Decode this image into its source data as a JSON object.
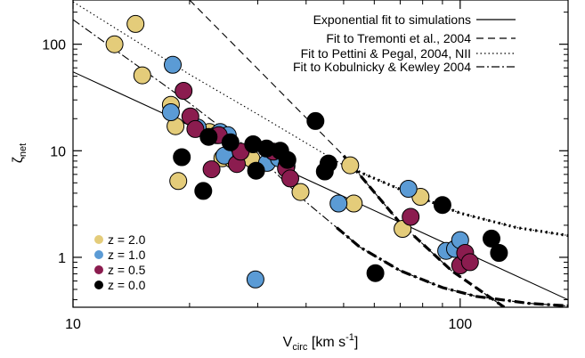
{
  "chart_data": {
    "type": "scatter",
    "xlabel": "V",
    "xlabel_sub": "circ",
    "xlabel_unit_prefix": " [km s",
    "xlabel_unit_sup": "-1",
    "xlabel_unit_suffix": "]",
    "ylabel": "ζ",
    "ylabel_sub": "net",
    "x_scale": "log",
    "y_scale": "log",
    "xlim": [
      10,
      190
    ],
    "ylim": [
      0.34,
      260
    ],
    "x_ticks": [
      {
        "value": 10,
        "label": "10"
      },
      {
        "value": 100,
        "label": "100"
      }
    ],
    "y_ticks": [
      {
        "value": 1,
        "label": "1"
      },
      {
        "value": 10,
        "label": "10"
      },
      {
        "value": 100,
        "label": "100"
      }
    ],
    "fit_lines": [
      {
        "name": "Exponential fit to simulations",
        "style": "solid",
        "points": [
          [
            10,
            55
          ],
          [
            190,
            0.4
          ]
        ]
      },
      {
        "name": "Fit to Tremonti et al., 2004",
        "style": "dashed",
        "points": [
          [
            20,
            260
          ],
          [
            50,
            9
          ],
          [
            70,
            2.1
          ],
          [
            95,
            0.75
          ],
          [
            130,
            0.34
          ]
        ],
        "thick_from": 50
      },
      {
        "name": "Fit to Pettini & Pegal, 2004, NII",
        "style": "dotted",
        "points": [
          [
            10,
            250
          ],
          [
            20,
            52
          ],
          [
            30,
            22
          ],
          [
            50,
            7.3
          ],
          [
            75,
            3.9
          ],
          [
            100,
            2.6
          ],
          [
            140,
            1.9
          ],
          [
            190,
            1.6
          ]
        ],
        "thick_from": 50
      },
      {
        "name": "Fit to Kobulnicky & Kewley 2004",
        "style": "dashdot",
        "points": [
          [
            10,
            170
          ],
          [
            20,
            28
          ],
          [
            30,
            9
          ],
          [
            40,
            3.3
          ],
          [
            48,
            1.9
          ],
          [
            55,
            1.25
          ],
          [
            70,
            0.75
          ],
          [
            90,
            0.52
          ],
          [
            110,
            0.43
          ],
          [
            150,
            0.37
          ],
          [
            190,
            0.35
          ]
        ],
        "thick_from": 48
      }
    ],
    "series": [
      {
        "name": "z = 2.0",
        "color": "#e4cc7a",
        "x": [
          12.8,
          14.5,
          15.1,
          17.9,
          18.4,
          18.7,
          22.5,
          24.3,
          25.9,
          28.9,
          33.9,
          38.7,
          52,
          53.1,
          71,
          79
        ],
        "y": [
          100,
          155,
          51,
          27,
          17,
          5.2,
          15,
          8.5,
          8.2,
          8.4,
          9.2,
          4.1,
          7.3,
          3.2,
          1.85,
          3.7
        ]
      },
      {
        "name": "z = 1.0",
        "color": "#5b9bd5",
        "x": [
          17.9,
          18.1,
          21,
          23.5,
          24,
          24.6,
          25.1,
          29.6,
          31.7,
          34,
          35.6,
          48.5,
          73.5,
          92,
          97,
          100
        ],
        "y": [
          23,
          64,
          16.5,
          14,
          15,
          9,
          14,
          0.62,
          7.7,
          8.5,
          7.2,
          3.2,
          4.4,
          1.15,
          1.2,
          1.45
        ]
      },
      {
        "name": "z = 0.5",
        "color": "#8b1c4f",
        "x": [
          19.3,
          20.1,
          20.7,
          22.8,
          23.8,
          26.5,
          27.1,
          32.9,
          35.5,
          36.4,
          74.5,
          100,
          103,
          106
        ],
        "y": [
          36.5,
          21,
          16,
          6.7,
          14,
          7.5,
          9.8,
          9.8,
          6.8,
          5.5,
          2.4,
          0.84,
          1.1,
          0.9
        ]
      },
      {
        "name": "z = 0.0",
        "color": "#000000",
        "x": [
          19.1,
          21.7,
          22.4,
          25.5,
          29.2,
          29.7,
          31.6,
          34.3,
          35.8,
          42.3,
          44.7,
          45.7,
          60.4,
          90,
          120.5,
          126
        ],
        "y": [
          8.7,
          4.2,
          13.5,
          12,
          11.5,
          6.5,
          10.5,
          10,
          8.2,
          19,
          6.4,
          7.6,
          0.71,
          3.1,
          1.5,
          1.1
        ]
      }
    ],
    "legend_fits_position": "top-right",
    "legend_series_position": "bottom-left",
    "grid": false
  }
}
